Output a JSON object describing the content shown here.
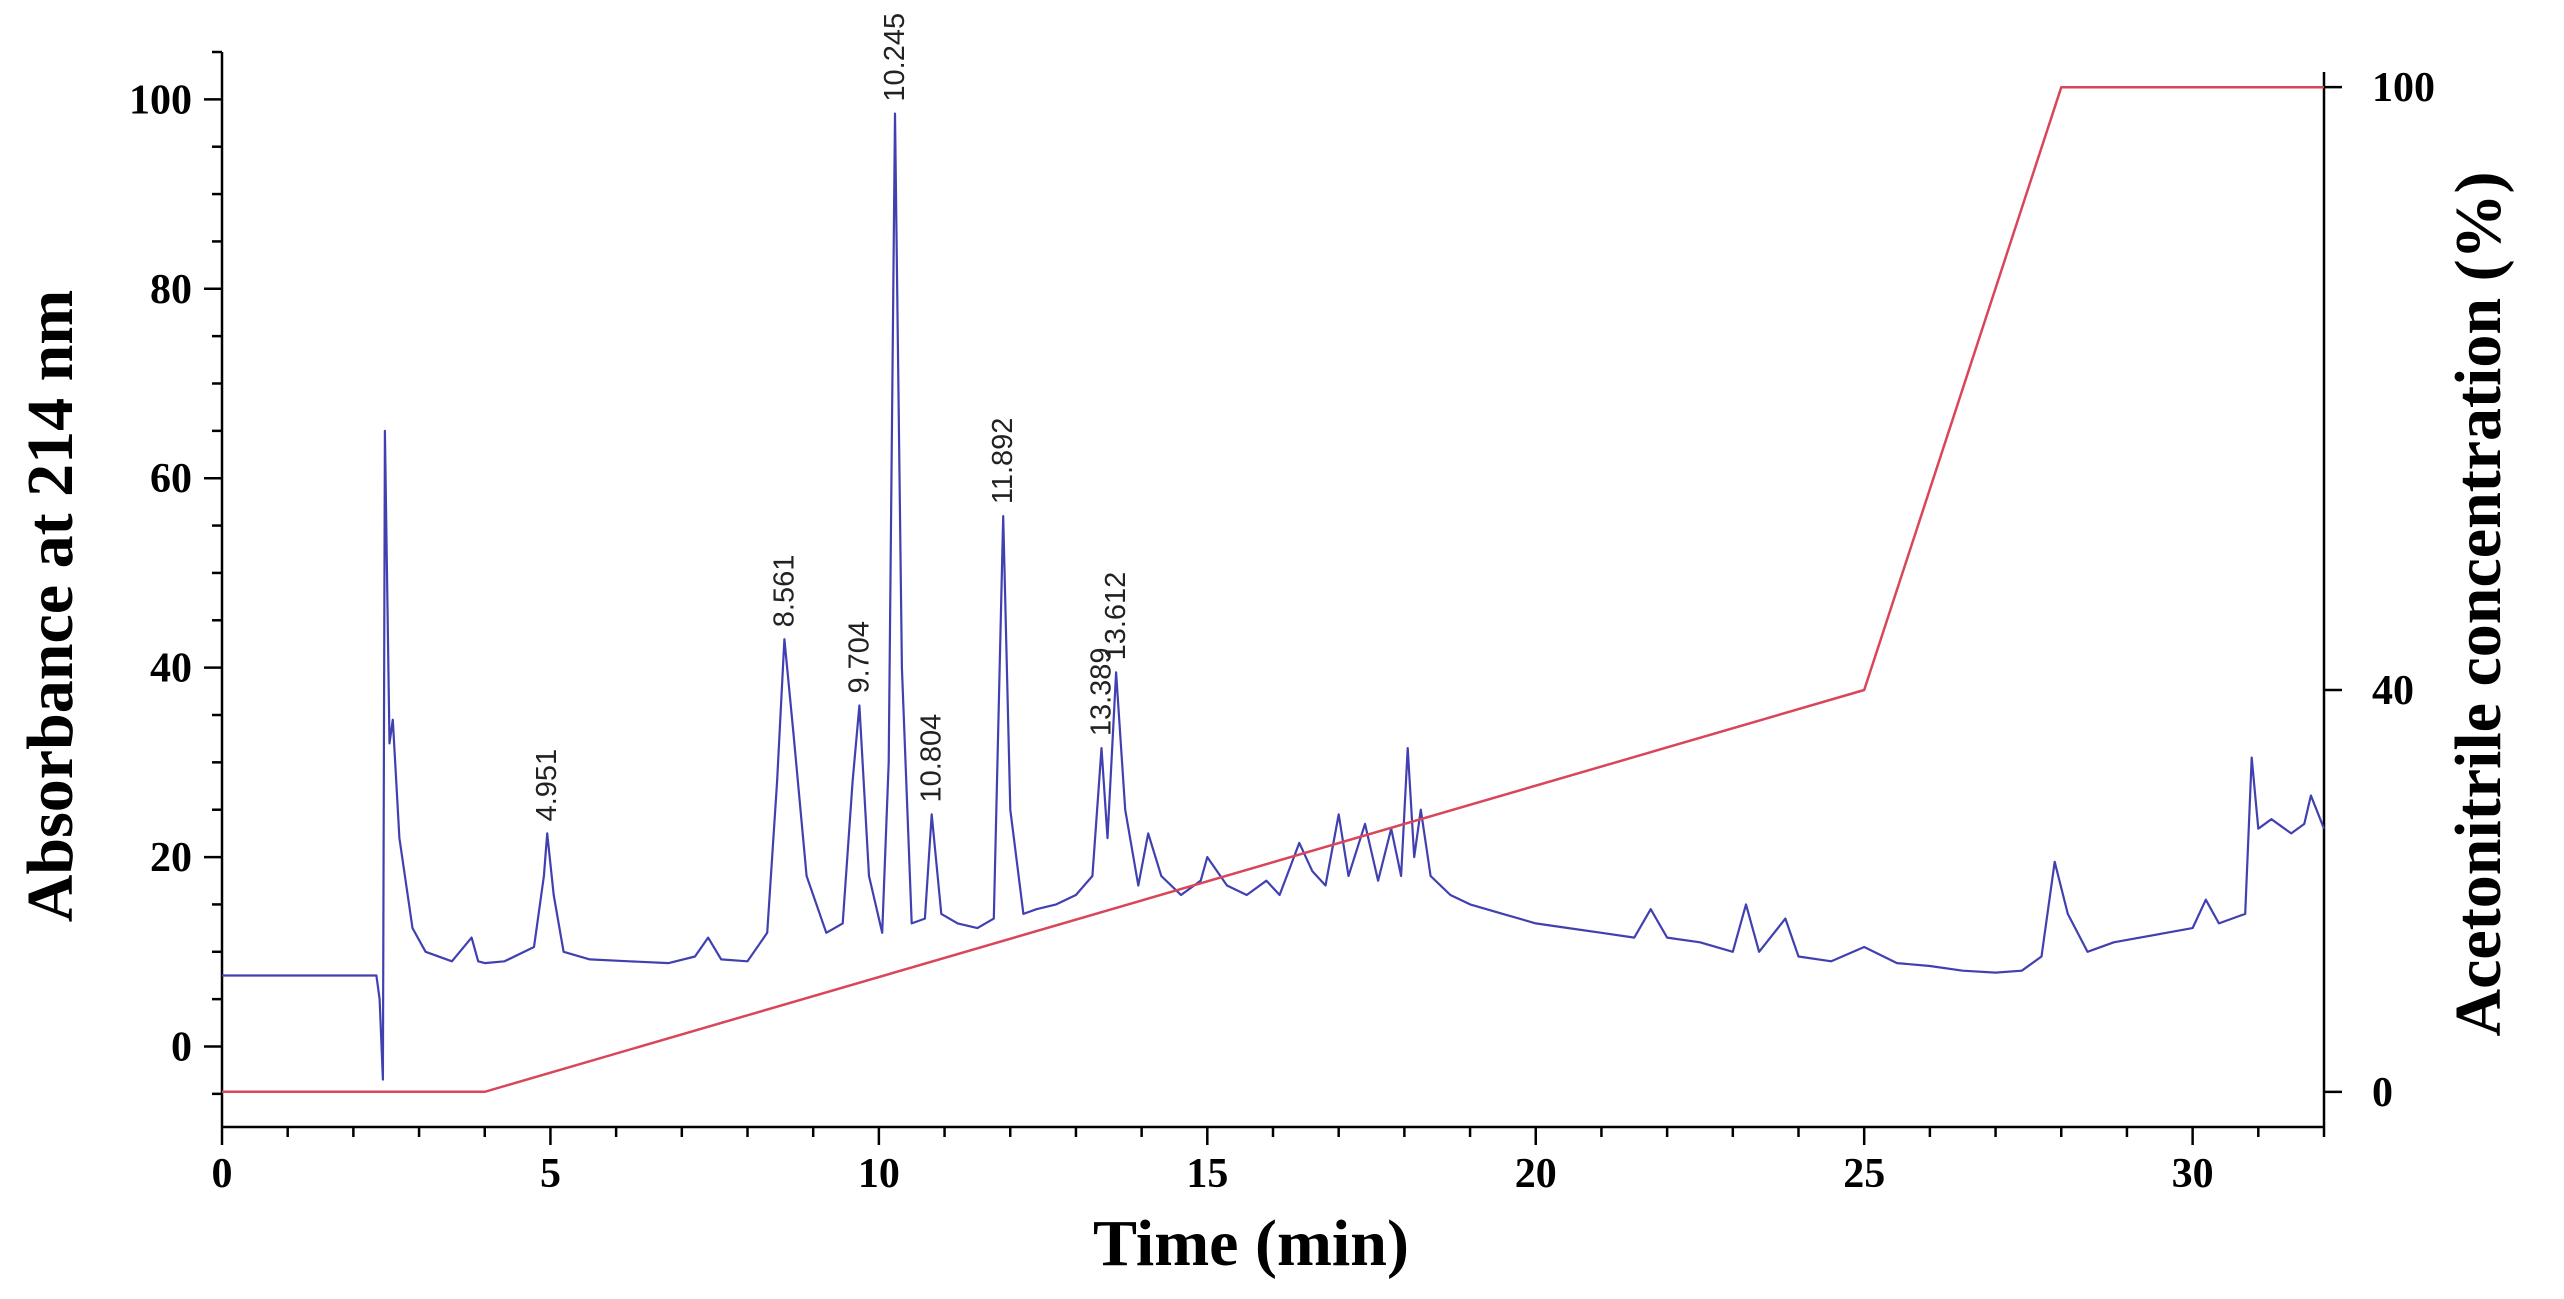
{
  "chart_data": {
    "type": "line",
    "xlabel": "Time (min)",
    "ylabel": "Absorbance at 214 nm",
    "y2label": "Acetonitrile concentration (%)",
    "xlim": [
      0,
      32
    ],
    "ylim": [
      -8.5,
      105
    ],
    "y2lim": [
      -3.5,
      103.5
    ],
    "x_ticks": [
      0,
      5,
      10,
      15,
      20,
      25,
      30
    ],
    "y_ticks": [
      0,
      20,
      40,
      60,
      80,
      100
    ],
    "y2_ticks": [
      0,
      40,
      100
    ],
    "grid": false,
    "legend": "none",
    "series": [
      {
        "axis": "left",
        "color": "#4040b0",
        "x": [
          0,
          2.35,
          2.4,
          2.45,
          2.48,
          2.55,
          2.6,
          2.7,
          2.9,
          3.1,
          3.5,
          3.8,
          3.9,
          4.0,
          4.3,
          4.75,
          4.9,
          4.951,
          5.05,
          5.2,
          5.6,
          6.2,
          6.8,
          7.2,
          7.4,
          7.6,
          8.0,
          8.3,
          8.45,
          8.561,
          8.7,
          8.9,
          9.2,
          9.45,
          9.6,
          9.704,
          9.85,
          10.05,
          10.15,
          10.245,
          10.35,
          10.5,
          10.7,
          10.804,
          10.95,
          11.2,
          11.5,
          11.75,
          11.892,
          12.0,
          12.2,
          12.4,
          12.7,
          13.0,
          13.25,
          13.389,
          13.48,
          13.612,
          13.75,
          13.95,
          14.1,
          14.3,
          14.6,
          14.9,
          15.0,
          15.3,
          15.6,
          15.9,
          16.1,
          16.4,
          16.6,
          16.8,
          17.0,
          17.15,
          17.4,
          17.6,
          17.8,
          17.95,
          18.05,
          18.15,
          18.25,
          18.4,
          18.7,
          19.0,
          19.5,
          20.0,
          20.5,
          21.0,
          21.5,
          21.75,
          22.0,
          22.5,
          23.0,
          23.2,
          23.4,
          23.8,
          24.0,
          24.5,
          25.0,
          25.5,
          26.0,
          26.5,
          27.0,
          27.4,
          27.7,
          27.9,
          28.1,
          28.4,
          28.8,
          29.2,
          29.6,
          30.0,
          30.2,
          30.4,
          30.8,
          30.9,
          31.0,
          31.2,
          31.5,
          31.7,
          31.8,
          32.0
        ],
        "y": [
          7.5,
          7.5,
          5.0,
          -3.5,
          65.0,
          32.0,
          34.5,
          22.0,
          12.5,
          10.0,
          9.0,
          11.5,
          9.0,
          8.8,
          9.0,
          10.5,
          18.0,
          22.5,
          16.0,
          10.0,
          9.2,
          9.0,
          8.8,
          9.5,
          11.5,
          9.2,
          9.0,
          12.0,
          28.0,
          43.0,
          33.0,
          18.0,
          12.0,
          13.0,
          28.0,
          36.0,
          18.0,
          12.0,
          30.0,
          98.5,
          40.0,
          13.0,
          13.5,
          24.5,
          14.0,
          13.0,
          12.5,
          13.5,
          56.0,
          25.0,
          14.0,
          14.5,
          15.0,
          16.0,
          18.0,
          31.5,
          22.0,
          39.5,
          25.0,
          17.0,
          22.5,
          18.0,
          16.0,
          17.5,
          20.0,
          17.0,
          16.0,
          17.5,
          16.0,
          21.5,
          18.5,
          17.0,
          24.5,
          18.0,
          23.5,
          17.5,
          23.0,
          18.0,
          31.5,
          20.0,
          25.0,
          18.0,
          16.0,
          15.0,
          14.0,
          13.0,
          12.5,
          12.0,
          11.5,
          14.5,
          11.5,
          11.0,
          10.0,
          15.0,
          10.0,
          13.5,
          9.5,
          9.0,
          10.5,
          8.8,
          8.5,
          8.0,
          7.8,
          8.0,
          9.5,
          19.5,
          14.0,
          10.0,
          11.0,
          11.5,
          12.0,
          12.5,
          15.5,
          13.0,
          14.0,
          30.5,
          23.0,
          24.0,
          22.5,
          23.5,
          26.5,
          23.0
        ]
      },
      {
        "axis": "right",
        "color": "#d9465a",
        "x": [
          0,
          4,
          25,
          28,
          32
        ],
        "y": [
          0,
          0,
          40,
          100,
          100
        ]
      }
    ],
    "annotations": [
      {
        "label": "4.951",
        "x": 4.951,
        "y": 22.5
      },
      {
        "label": "8.561",
        "x": 8.561,
        "y": 43.0
      },
      {
        "label": "9.704",
        "x": 9.704,
        "y": 36.0
      },
      {
        "label": "10.245",
        "x": 10.245,
        "y": 98.5
      },
      {
        "label": "10.804",
        "x": 10.804,
        "y": 24.5
      },
      {
        "label": "11.892",
        "x": 11.892,
        "y": 56.0
      },
      {
        "label": "13.389",
        "x": 13.389,
        "y": 31.5
      },
      {
        "label": "13.612",
        "x": 13.612,
        "y": 39.5
      }
    ]
  }
}
